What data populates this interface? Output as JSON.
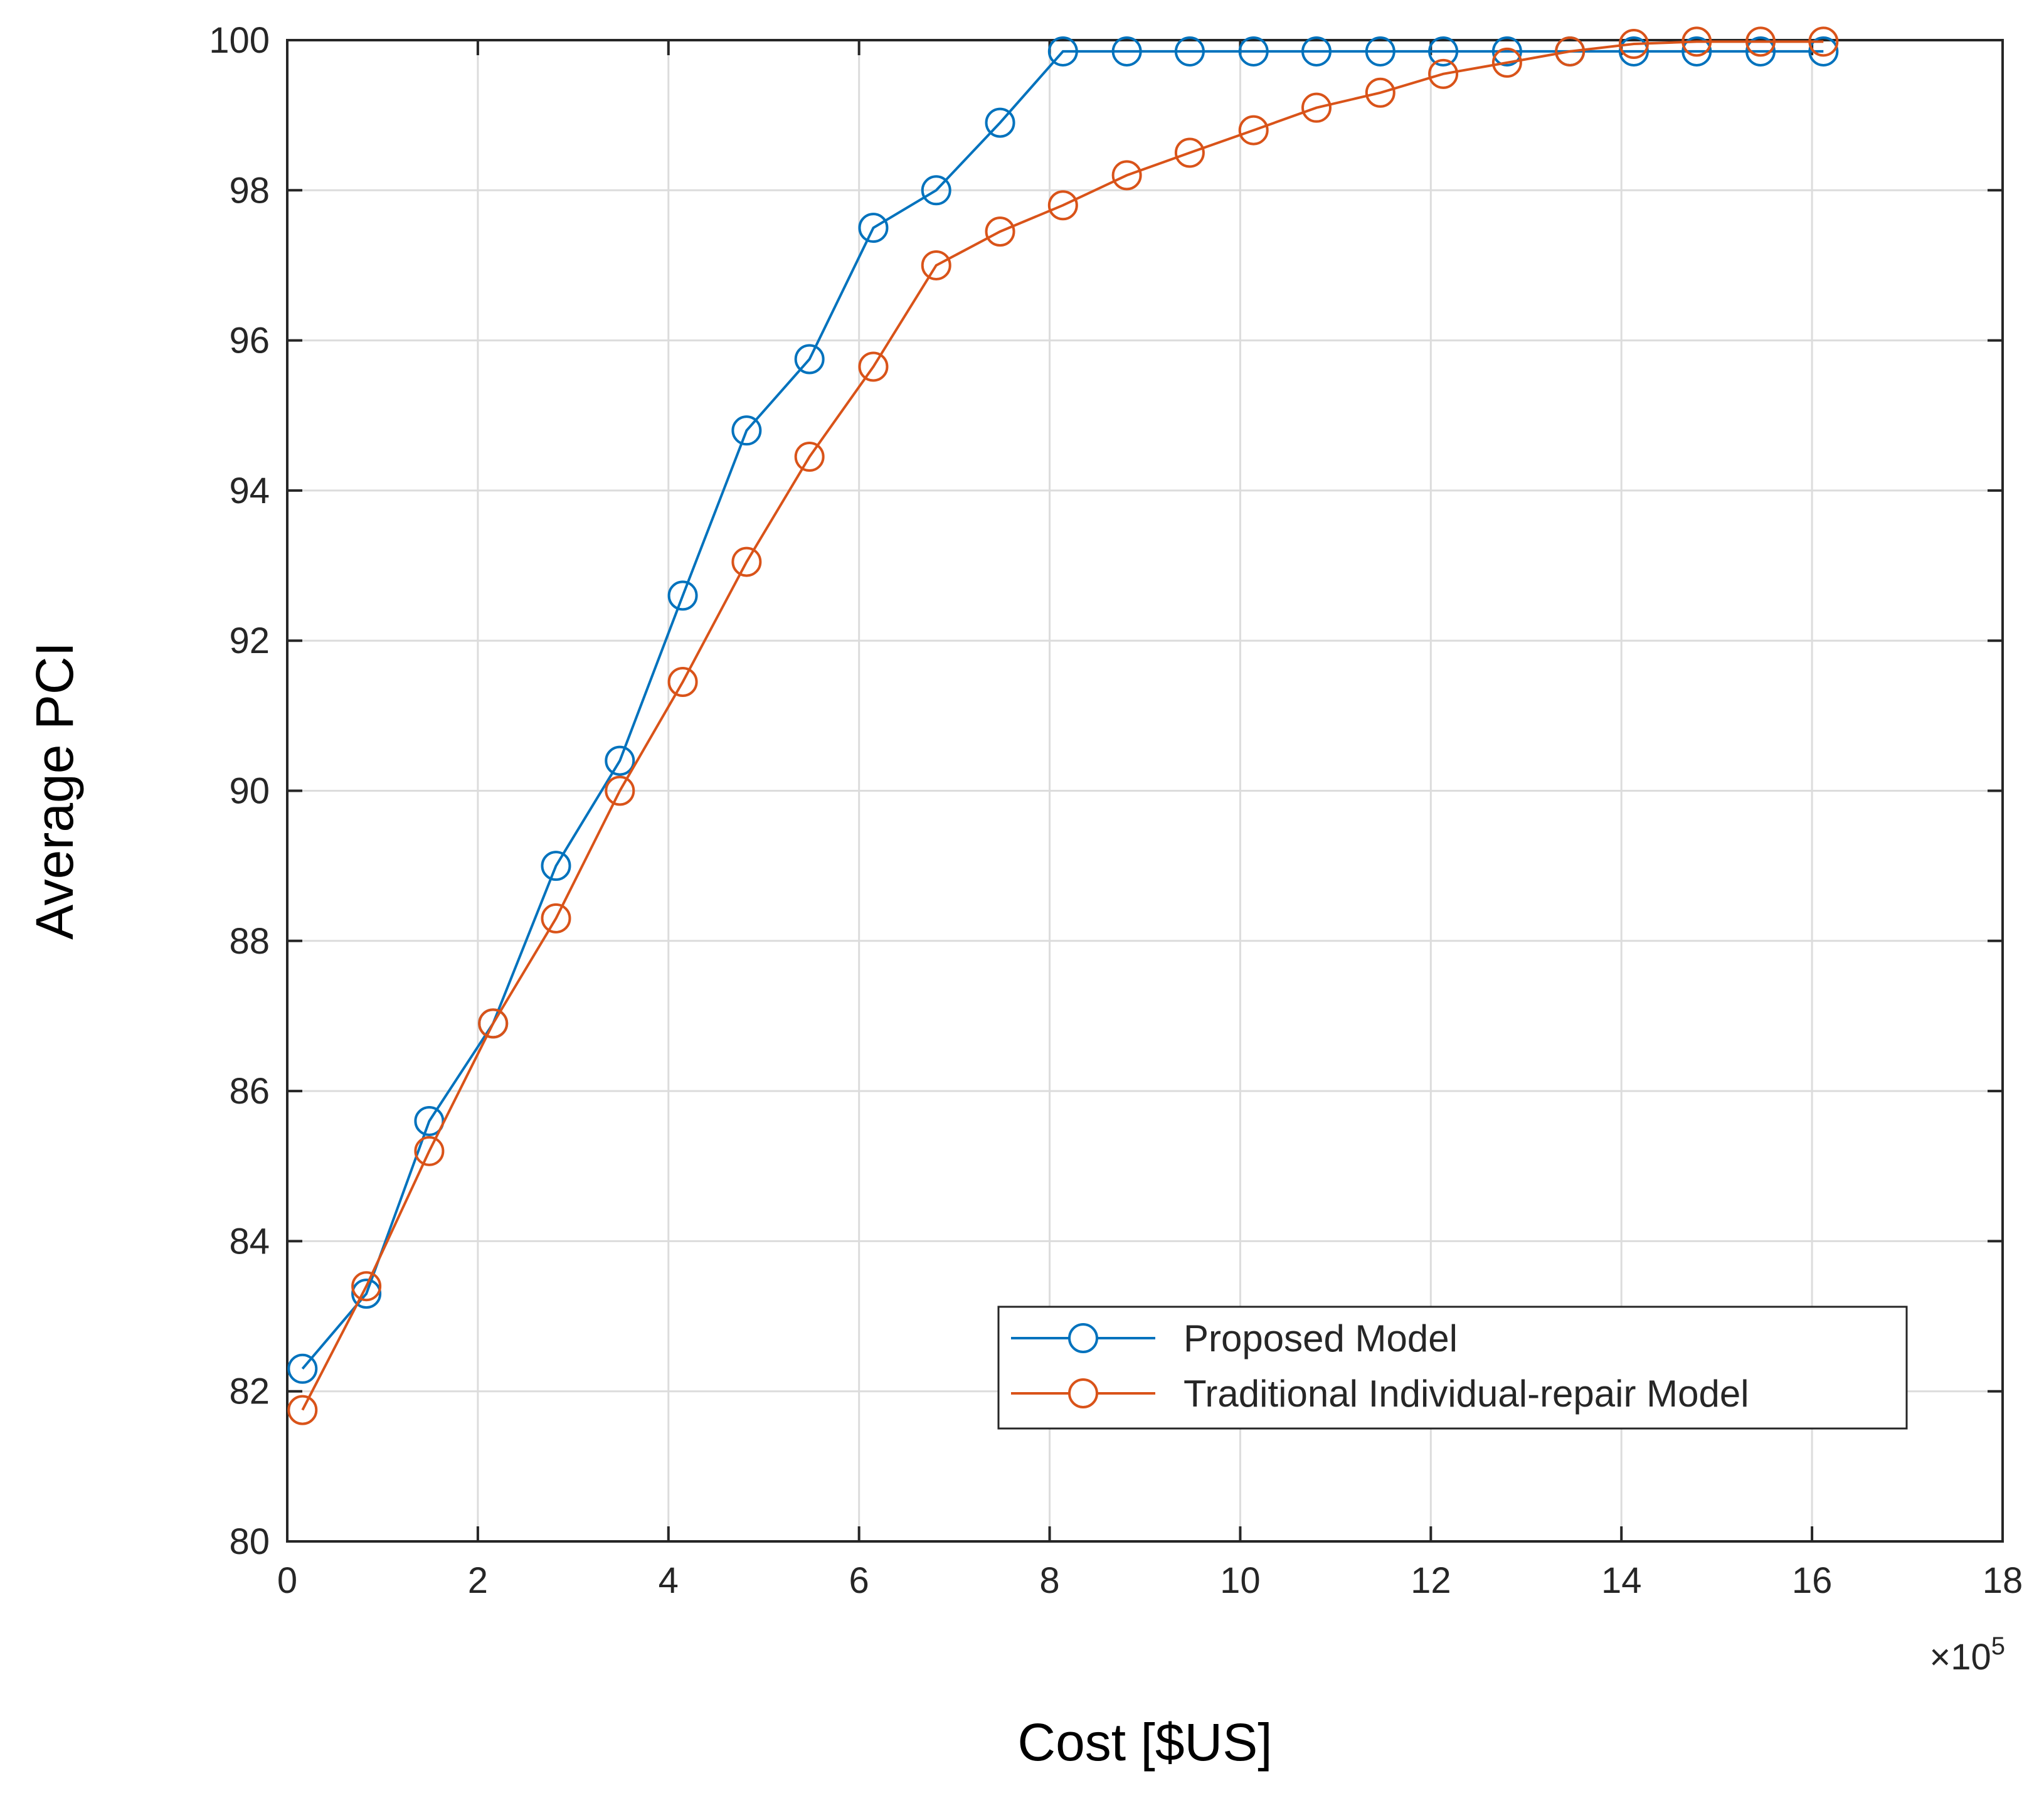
{
  "chart_data": {
    "type": "line",
    "title": "",
    "xlabel": "Cost [$US]",
    "ylabel": "Average PCI",
    "x_multiplier_label": "×10",
    "x_multiplier_exponent": "5",
    "xlim": [
      0,
      18
    ],
    "ylim": [
      80,
      100
    ],
    "xticks": [
      "0",
      "2",
      "4",
      "6",
      "8",
      "10",
      "12",
      "14",
      "16",
      "18"
    ],
    "yticks": [
      "80",
      "82",
      "84",
      "86",
      "88",
      "90",
      "92",
      "94",
      "96",
      "98",
      "100"
    ],
    "grid": true,
    "legend_position": "bottom-right",
    "series": [
      {
        "name": "Proposed Model",
        "color": "#0072BD",
        "marker": "circle",
        "x": [
          0.16,
          0.83,
          1.49,
          2.16,
          2.82,
          3.49,
          4.15,
          4.82,
          5.48,
          6.15,
          6.81,
          7.48,
          8.14,
          8.81,
          9.47,
          10.14,
          10.8,
          11.47,
          12.13,
          12.8,
          13.46,
          14.13,
          14.79,
          15.46,
          16.12
        ],
        "y": [
          82.3,
          83.3,
          85.6,
          86.9,
          89.0,
          90.4,
          92.6,
          94.8,
          95.75,
          97.5,
          98.0,
          98.9,
          99.85,
          99.85,
          99.85,
          99.85,
          99.85,
          99.85,
          99.85,
          99.85,
          99.85,
          99.85,
          99.85,
          99.85,
          99.85
        ]
      },
      {
        "name": "Traditional Individual-repair Model",
        "color": "#D95319",
        "marker": "circle",
        "x": [
          0.16,
          0.83,
          1.49,
          2.16,
          2.82,
          3.49,
          4.15,
          4.82,
          5.48,
          6.15,
          6.81,
          7.48,
          8.14,
          8.81,
          9.47,
          10.14,
          10.8,
          11.47,
          12.13,
          12.8,
          13.46,
          14.13,
          14.79,
          15.46,
          16.12
        ],
        "y": [
          81.75,
          83.4,
          85.2,
          86.9,
          88.3,
          90.0,
          91.45,
          93.05,
          94.45,
          95.65,
          97.0,
          97.45,
          97.8,
          98.2,
          98.5,
          98.8,
          99.1,
          99.3,
          99.55,
          99.7,
          99.85,
          99.95,
          99.98,
          99.98,
          99.98
        ]
      }
    ]
  }
}
